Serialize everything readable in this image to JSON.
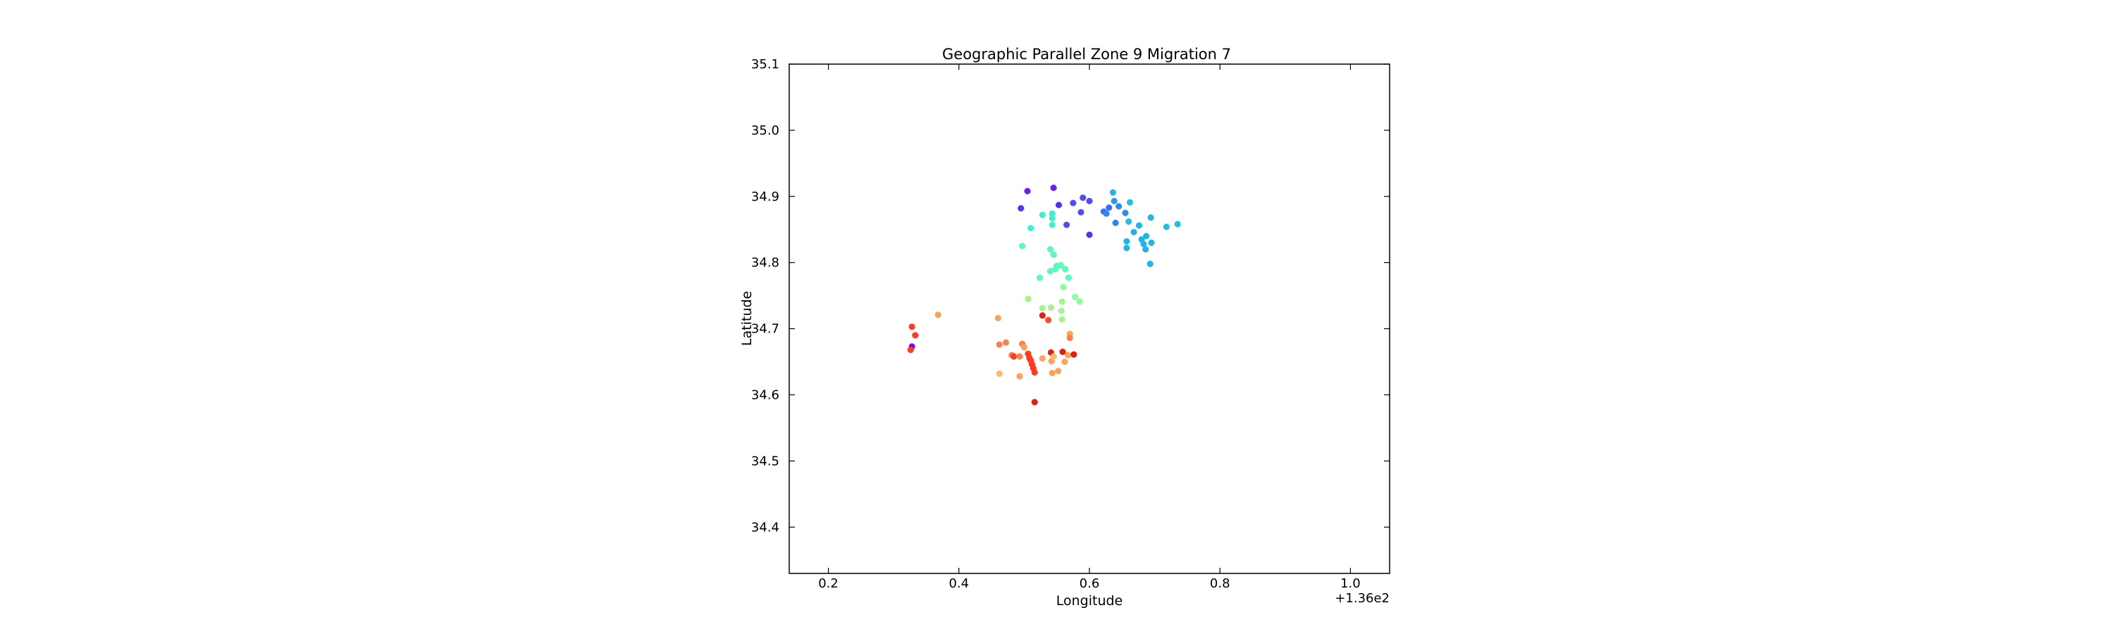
{
  "chart_data": {
    "type": "scatter",
    "title": "Geographic Parallel Zone 9 Migration 7",
    "xlabel": "Longitude",
    "ylabel": "Latitude",
    "x_offset_label": "+1.36e2",
    "x_tick_labels": [
      "0.2",
      "0.4",
      "0.6",
      "0.8",
      "1.0"
    ],
    "y_tick_labels": [
      "34.4",
      "34.5",
      "34.6",
      "34.7",
      "34.8",
      "34.9",
      "35.0",
      "35.1"
    ],
    "xlim": [
      136.14,
      137.06
    ],
    "ylim": [
      34.33,
      35.1
    ],
    "colormap": "rainbow",
    "grid": false,
    "points": [
      {
        "x": 136.505,
        "y": 34.908,
        "color": "#6a1cf6"
      },
      {
        "x": 136.545,
        "y": 34.913,
        "color": "#6a1cf6"
      },
      {
        "x": 136.495,
        "y": 34.882,
        "color": "#5a2ef8"
      },
      {
        "x": 136.553,
        "y": 34.887,
        "color": "#5a2ef8"
      },
      {
        "x": 136.575,
        "y": 34.89,
        "color": "#4e4bfa"
      },
      {
        "x": 136.59,
        "y": 34.898,
        "color": "#4e4bfa"
      },
      {
        "x": 136.6,
        "y": 34.893,
        "color": "#4e4bfa"
      },
      {
        "x": 136.587,
        "y": 34.876,
        "color": "#4e4bfa"
      },
      {
        "x": 136.565,
        "y": 34.857,
        "color": "#4e4bfa"
      },
      {
        "x": 136.6,
        "y": 34.842,
        "color": "#5a2ef8"
      },
      {
        "x": 136.622,
        "y": 34.877,
        "color": "#3d6cf9"
      },
      {
        "x": 136.63,
        "y": 34.883,
        "color": "#3d6cf9"
      },
      {
        "x": 136.626,
        "y": 34.874,
        "color": "#2f86f5"
      },
      {
        "x": 136.638,
        "y": 34.893,
        "color": "#2a95f2"
      },
      {
        "x": 136.636,
        "y": 34.906,
        "color": "#1fb5e8"
      },
      {
        "x": 136.645,
        "y": 34.885,
        "color": "#2f86f5"
      },
      {
        "x": 136.64,
        "y": 34.86,
        "color": "#2f86f5"
      },
      {
        "x": 136.655,
        "y": 34.875,
        "color": "#2f86f5"
      },
      {
        "x": 136.662,
        "y": 34.891,
        "color": "#19c4e3"
      },
      {
        "x": 136.66,
        "y": 34.862,
        "color": "#19c4e3"
      },
      {
        "x": 136.668,
        "y": 34.846,
        "color": "#1fb5e8"
      },
      {
        "x": 136.676,
        "y": 34.856,
        "color": "#1fb5e8"
      },
      {
        "x": 136.694,
        "y": 34.868,
        "color": "#1fb5e8"
      },
      {
        "x": 136.657,
        "y": 34.832,
        "color": "#1fb5e8"
      },
      {
        "x": 136.657,
        "y": 34.822,
        "color": "#1fb5e8"
      },
      {
        "x": 136.68,
        "y": 34.835,
        "color": "#1fb5e8"
      },
      {
        "x": 136.687,
        "y": 34.84,
        "color": "#1fb5e8"
      },
      {
        "x": 136.683,
        "y": 34.828,
        "color": "#1fb5e8"
      },
      {
        "x": 136.695,
        "y": 34.83,
        "color": "#1fb5e8"
      },
      {
        "x": 136.686,
        "y": 34.82,
        "color": "#1fb5e8"
      },
      {
        "x": 136.693,
        "y": 34.798,
        "color": "#1fb5e8"
      },
      {
        "x": 136.718,
        "y": 34.854,
        "color": "#19c4e3"
      },
      {
        "x": 136.735,
        "y": 34.858,
        "color": "#19c4e3"
      },
      {
        "x": 136.528,
        "y": 34.872,
        "color": "#3cf2cb"
      },
      {
        "x": 136.543,
        "y": 34.874,
        "color": "#3cf2cb"
      },
      {
        "x": 136.543,
        "y": 34.867,
        "color": "#3cf2cb"
      },
      {
        "x": 136.543,
        "y": 34.857,
        "color": "#3cf2cb"
      },
      {
        "x": 136.51,
        "y": 34.852,
        "color": "#3cf2cb"
      },
      {
        "x": 136.497,
        "y": 34.825,
        "color": "#5bfab6"
      },
      {
        "x": 136.54,
        "y": 34.82,
        "color": "#5bfab6"
      },
      {
        "x": 136.545,
        "y": 34.812,
        "color": "#5bfab6"
      },
      {
        "x": 136.55,
        "y": 34.795,
        "color": "#5bfab6"
      },
      {
        "x": 136.556,
        "y": 34.796,
        "color": "#5bfab6"
      },
      {
        "x": 136.54,
        "y": 34.787,
        "color": "#5bfab6"
      },
      {
        "x": 136.563,
        "y": 34.79,
        "color": "#5bfab6"
      },
      {
        "x": 136.568,
        "y": 34.777,
        "color": "#5bfab6"
      },
      {
        "x": 136.548,
        "y": 34.79,
        "color": "#5bfab6"
      },
      {
        "x": 136.524,
        "y": 34.777,
        "color": "#5bfab6"
      },
      {
        "x": 136.56,
        "y": 34.763,
        "color": "#8cfd9a"
      },
      {
        "x": 136.578,
        "y": 34.748,
        "color": "#8cfd9a"
      },
      {
        "x": 136.585,
        "y": 34.741,
        "color": "#8cfd9a"
      },
      {
        "x": 136.506,
        "y": 34.745,
        "color": "#a4f68c"
      },
      {
        "x": 136.558,
        "y": 34.741,
        "color": "#a4f68c"
      },
      {
        "x": 136.528,
        "y": 34.731,
        "color": "#a4f68c"
      },
      {
        "x": 136.541,
        "y": 34.732,
        "color": "#a4f68c"
      },
      {
        "x": 136.557,
        "y": 34.727,
        "color": "#a4f68c"
      },
      {
        "x": 136.558,
        "y": 34.714,
        "color": "#a4f68c"
      },
      {
        "x": 136.537,
        "y": 34.713,
        "color": "#ff4a25"
      },
      {
        "x": 136.528,
        "y": 34.72,
        "color": "#e81d0e"
      },
      {
        "x": 136.368,
        "y": 34.721,
        "color": "#ffa15a"
      },
      {
        "x": 136.46,
        "y": 34.716,
        "color": "#ffa15a"
      },
      {
        "x": 136.328,
        "y": 34.703,
        "color": "#ff3a1e"
      },
      {
        "x": 136.333,
        "y": 34.69,
        "color": "#ff3a1e"
      },
      {
        "x": 136.328,
        "y": 34.673,
        "color": "#8000ff"
      },
      {
        "x": 136.326,
        "y": 34.668,
        "color": "#ff3a1e"
      },
      {
        "x": 136.462,
        "y": 34.676,
        "color": "#ff7f4a"
      },
      {
        "x": 136.472,
        "y": 34.679,
        "color": "#ff7f4a"
      },
      {
        "x": 136.497,
        "y": 34.677,
        "color": "#ff7f4a"
      },
      {
        "x": 136.5,
        "y": 34.672,
        "color": "#ffa15a"
      },
      {
        "x": 136.57,
        "y": 34.692,
        "color": "#ffa15a"
      },
      {
        "x": 136.57,
        "y": 34.686,
        "color": "#ff7f4a"
      },
      {
        "x": 136.481,
        "y": 34.66,
        "color": "#ff7f4a"
      },
      {
        "x": 136.484,
        "y": 34.658,
        "color": "#ff3a1e"
      },
      {
        "x": 136.493,
        "y": 34.658,
        "color": "#ff7f4a"
      },
      {
        "x": 136.506,
        "y": 34.662,
        "color": "#ff3a1e"
      },
      {
        "x": 136.508,
        "y": 34.656,
        "color": "#ff3a1e"
      },
      {
        "x": 136.51,
        "y": 34.652,
        "color": "#ff3a1e"
      },
      {
        "x": 136.512,
        "y": 34.646,
        "color": "#ff3a1e"
      },
      {
        "x": 136.514,
        "y": 34.64,
        "color": "#ff3a1e"
      },
      {
        "x": 136.516,
        "y": 34.634,
        "color": "#ff3a1e"
      },
      {
        "x": 136.528,
        "y": 34.655,
        "color": "#ffa15a"
      },
      {
        "x": 136.541,
        "y": 34.664,
        "color": "#e81d0e"
      },
      {
        "x": 136.542,
        "y": 34.651,
        "color": "#ffa15a"
      },
      {
        "x": 136.545,
        "y": 34.658,
        "color": "#ffb86c"
      },
      {
        "x": 136.559,
        "y": 34.665,
        "color": "#e81d0e"
      },
      {
        "x": 136.567,
        "y": 34.66,
        "color": "#ffa15a"
      },
      {
        "x": 136.576,
        "y": 34.661,
        "color": "#e81d0e"
      },
      {
        "x": 136.562,
        "y": 34.65,
        "color": "#ffa15a"
      },
      {
        "x": 136.462,
        "y": 34.632,
        "color": "#ffb86c"
      },
      {
        "x": 136.493,
        "y": 34.628,
        "color": "#ffa15a"
      },
      {
        "x": 136.543,
        "y": 34.633,
        "color": "#ffa15a"
      },
      {
        "x": 136.552,
        "y": 34.636,
        "color": "#ffa15a"
      },
      {
        "x": 136.516,
        "y": 34.589,
        "color": "#e81d0e"
      }
    ]
  }
}
